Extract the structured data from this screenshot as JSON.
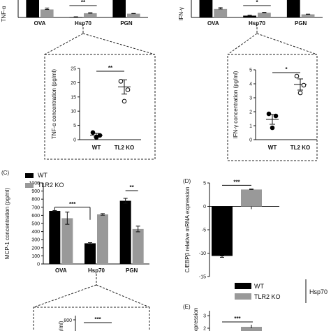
{
  "colors": {
    "wt": "#000000",
    "ko": "#999999",
    "axis": "#111111",
    "box": "#222222"
  },
  "chart_data": [
    {
      "id": "tnf_bars",
      "type": "bar",
      "panel_label": "",
      "ylabel": "TNF-α",
      "categories": [
        "OVA",
        "Hsp70",
        "PGN"
      ],
      "series": [
        {
          "name": "WT",
          "values": [
            null,
            2,
            null
          ],
          "errors": [
            null,
            1,
            null
          ]
        },
        {
          "name": "TLR2 KO",
          "values": [
            36,
            19,
            17
          ],
          "errors": [
            6,
            2,
            1
          ]
        }
      ],
      "ylim": [
        0,
        60
      ],
      "overflow_wt": [
        true,
        false,
        true
      ],
      "annotations": [
        {
          "between": "Hsp70",
          "text": "**"
        }
      ]
    },
    {
      "id": "ifn_bars",
      "type": "bar",
      "panel_label": "",
      "ylabel": "IFN-γ",
      "categories": [
        "OVA",
        "Hsp70",
        "PGN"
      ],
      "series": [
        {
          "name": "WT",
          "values": [
            null,
            8,
            null
          ],
          "errors": [
            null,
            2,
            null
          ]
        },
        {
          "name": "TLR2 KO",
          "values": [
            38,
            21,
            14
          ],
          "errors": [
            6,
            2,
            1
          ]
        }
      ],
      "ylim": [
        0,
        60
      ],
      "overflow_wt": [
        true,
        false,
        true
      ],
      "annotations": [
        {
          "between": "Hsp70",
          "text": "*"
        }
      ]
    },
    {
      "id": "tnf_inset",
      "type": "scatter",
      "ylabel": "TNF-α concentration (pg/ml)",
      "categories": [
        "WT",
        "TL2 KO"
      ],
      "ylim": [
        0,
        25
      ],
      "yticks": [
        0,
        5,
        10,
        15,
        20,
        25
      ],
      "groups": [
        {
          "name": "WT",
          "points": [
            2.5,
            1.5,
            0.8
          ],
          "mean": 1.6,
          "sem": 0.6,
          "filled": true
        },
        {
          "name": "TL2 KO",
          "points": [
            20.5,
            17.5,
            13.5
          ],
          "mean": 18.5,
          "sem": 2.5,
          "filled": false
        }
      ],
      "sig": "**"
    },
    {
      "id": "ifn_inset",
      "type": "scatter",
      "ylabel": "IFN-γ concentration (pg/ml)",
      "categories": [
        "WT",
        "TL2 KO"
      ],
      "ylim": [
        0,
        5
      ],
      "yticks": [
        0,
        1,
        2,
        3,
        4,
        5
      ],
      "groups": [
        {
          "name": "WT",
          "points": [
            1.85,
            1.7,
            0.85
          ],
          "mean": 1.45,
          "sem": 0.35,
          "filled": true
        },
        {
          "name": "TL2 KO",
          "points": [
            4.55,
            3.9,
            3.35
          ],
          "mean": 3.95,
          "sem": 0.4,
          "filled": false
        }
      ],
      "sig": "*"
    },
    {
      "id": "mcp1_bars",
      "type": "bar",
      "panel_label": "(C)",
      "ylabel": "MCP-1 concentration (pg/ml)",
      "categories": [
        "OVA",
        "Hsp70",
        "PGN"
      ],
      "series": [
        {
          "name": "WT",
          "values": [
            655,
            255,
            780
          ],
          "errors": [
            5,
            8,
            30
          ]
        },
        {
          "name": "TLR2 KO",
          "values": [
            565,
            612,
            432
          ],
          "errors": [
            75,
            10,
            35
          ]
        }
      ],
      "ylim": [
        0,
        1000
      ],
      "yticks": [
        0,
        100,
        200,
        300,
        400,
        500,
        600,
        700,
        800,
        900,
        1000
      ],
      "legend": [
        "WT",
        "TLR2 KO"
      ],
      "legend_position": "top-left",
      "annotations": [
        {
          "from": "OVA",
          "to": "Hsp70",
          "text": "***"
        },
        {
          "between": "PGN",
          "text": "**"
        }
      ]
    },
    {
      "id": "cebpb_bars",
      "type": "bar",
      "panel_label": "(D)",
      "ylabel": "C/EBPβ relative mRNA expression",
      "categories": [
        "WT",
        "TLR2 KO"
      ],
      "values": [
        -10.6,
        3.6
      ],
      "errors": [
        0.3,
        0.1
      ],
      "ylim": [
        -15,
        5
      ],
      "yticks": [
        5,
        0,
        -5,
        -10,
        -15
      ],
      "sig": "***"
    },
    {
      "id": "panel_e",
      "type": "bar",
      "panel_label": "(E)",
      "ylabel": "expression",
      "visible_ticks": [
        3,
        2
      ],
      "sig": "***"
    }
  ],
  "legend_bottom": {
    "items": [
      "WT",
      "TLR2 KO"
    ],
    "group_label": "Hsp70"
  },
  "mcp1_inset_fragment": {
    "tick": "800",
    "ylabel": "(pg/ml)",
    "sig": "***"
  }
}
